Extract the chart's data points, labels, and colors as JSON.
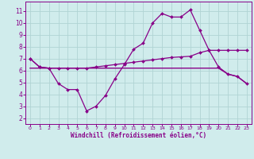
{
  "xlabel": "Windchill (Refroidissement éolien,°C)",
  "bg_color": "#d0ecec",
  "grid_color": "#b0d4d4",
  "line_color": "#880088",
  "marker": "D",
  "marker_size": 2.0,
  "line_width": 0.9,
  "xlim": [
    -0.5,
    23.5
  ],
  "ylim": [
    1.5,
    11.8
  ],
  "xticks": [
    0,
    1,
    2,
    3,
    4,
    5,
    6,
    7,
    8,
    9,
    10,
    11,
    12,
    13,
    14,
    15,
    16,
    17,
    18,
    19,
    20,
    21,
    22,
    23
  ],
  "yticks": [
    2,
    3,
    4,
    5,
    6,
    7,
    8,
    9,
    10,
    11
  ],
  "line1_x": [
    0,
    1,
    2,
    3,
    4,
    5,
    6,
    7,
    8,
    9,
    10,
    11,
    12,
    13,
    14,
    15,
    16,
    17,
    18,
    19,
    20,
    21,
    22,
    23
  ],
  "line1_y": [
    7.0,
    6.3,
    6.2,
    6.2,
    6.2,
    6.2,
    6.2,
    6.3,
    6.4,
    6.5,
    6.6,
    6.7,
    6.8,
    6.9,
    7.0,
    7.1,
    7.15,
    7.2,
    7.5,
    7.7,
    7.7,
    7.7,
    7.7,
    7.7
  ],
  "line2_x": [
    0,
    1,
    2,
    3,
    4,
    5,
    6,
    7,
    8,
    9,
    10,
    11,
    12,
    13,
    14,
    15,
    16,
    17,
    18,
    19,
    20,
    21,
    22,
    23
  ],
  "line2_y": [
    7.0,
    6.3,
    6.2,
    4.9,
    4.4,
    4.4,
    2.6,
    3.0,
    3.9,
    5.3,
    6.5,
    7.8,
    8.3,
    10.0,
    10.8,
    10.5,
    10.5,
    11.1,
    9.4,
    7.7,
    6.3,
    5.7,
    5.5,
    4.9
  ],
  "line3_x": [
    0,
    1,
    2,
    3,
    4,
    5,
    6,
    7,
    8,
    9,
    10,
    11,
    12,
    13,
    14,
    15,
    16,
    17,
    18,
    19,
    20,
    21,
    22,
    23
  ],
  "line3_y": [
    6.2,
    6.2,
    6.2,
    6.2,
    6.2,
    6.2,
    6.2,
    6.2,
    6.2,
    6.2,
    6.2,
    6.2,
    6.2,
    6.2,
    6.2,
    6.2,
    6.2,
    6.2,
    6.2,
    6.2,
    6.2,
    5.7,
    5.5,
    4.9
  ]
}
